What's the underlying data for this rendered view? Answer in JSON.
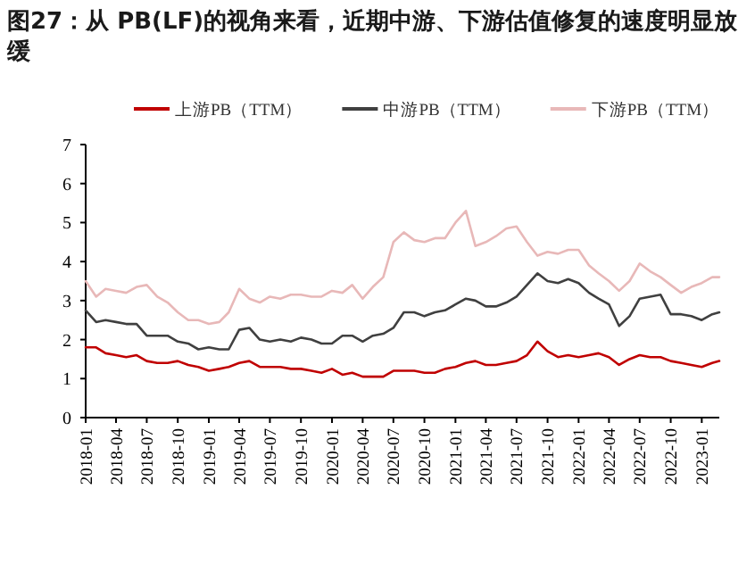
{
  "chart_data": {
    "type": "line",
    "title": "图27：从 PB(LF)的视角来看，近期中游、下游估值修复的速度明显放缓",
    "x": [
      "2018-01",
      "2018-02",
      "2018-03",
      "2018-04",
      "2018-05",
      "2018-06",
      "2018-07",
      "2018-08",
      "2018-09",
      "2018-10",
      "2018-11",
      "2018-12",
      "2019-01",
      "2019-02",
      "2019-03",
      "2019-04",
      "2019-05",
      "2019-06",
      "2019-07",
      "2019-08",
      "2019-09",
      "2019-10",
      "2019-11",
      "2019-12",
      "2020-01",
      "2020-02",
      "2020-03",
      "2020-04",
      "2020-05",
      "2020-06",
      "2020-07",
      "2020-08",
      "2020-09",
      "2020-10",
      "2020-11",
      "2020-12",
      "2021-01",
      "2021-02",
      "2021-03",
      "2021-04",
      "2021-05",
      "2021-06",
      "2021-07",
      "2021-08",
      "2021-09",
      "2021-10",
      "2021-11",
      "2021-12",
      "2022-01",
      "2022-02",
      "2022-03",
      "2022-04",
      "2022-05",
      "2022-06",
      "2022-07",
      "2022-08",
      "2022-09",
      "2022-10",
      "2022-11",
      "2022-12",
      "2023-01",
      "2023-02",
      "2023-02-22"
    ],
    "series": [
      {
        "name": "上游PB（TTM）",
        "color": "#c00000",
        "values": [
          1.8,
          1.8,
          1.65,
          1.6,
          1.55,
          1.6,
          1.45,
          1.4,
          1.4,
          1.45,
          1.35,
          1.3,
          1.2,
          1.25,
          1.3,
          1.4,
          1.45,
          1.3,
          1.3,
          1.3,
          1.25,
          1.25,
          1.2,
          1.15,
          1.25,
          1.1,
          1.15,
          1.05,
          1.05,
          1.05,
          1.2,
          1.2,
          1.2,
          1.15,
          1.15,
          1.25,
          1.3,
          1.4,
          1.45,
          1.35,
          1.35,
          1.4,
          1.45,
          1.6,
          1.95,
          1.7,
          1.55,
          1.6,
          1.55,
          1.6,
          1.65,
          1.55,
          1.35,
          1.5,
          1.6,
          1.55,
          1.55,
          1.45,
          1.4,
          1.35,
          1.3,
          1.4,
          1.45
        ]
      },
      {
        "name": "中游PB（TTM）",
        "color": "#404040",
        "values": [
          2.75,
          2.45,
          2.5,
          2.45,
          2.4,
          2.4,
          2.1,
          2.1,
          2.1,
          1.95,
          1.9,
          1.75,
          1.8,
          1.75,
          1.75,
          2.25,
          2.3,
          2.0,
          1.95,
          2.0,
          1.95,
          2.05,
          2.0,
          1.9,
          1.9,
          2.1,
          2.1,
          1.95,
          2.1,
          2.15,
          2.3,
          2.7,
          2.7,
          2.6,
          2.7,
          2.75,
          2.9,
          3.05,
          3.0,
          2.85,
          2.85,
          2.95,
          3.1,
          3.4,
          3.7,
          3.5,
          3.45,
          3.55,
          3.45,
          3.2,
          3.05,
          2.9,
          2.35,
          2.6,
          3.05,
          3.1,
          3.15,
          2.65,
          2.65,
          2.6,
          2.5,
          2.65,
          2.7
        ]
      },
      {
        "name": "下游PB（TTM）",
        "color": "#e8b8b8",
        "values": [
          3.5,
          3.1,
          3.3,
          3.25,
          3.2,
          3.35,
          3.4,
          3.1,
          2.95,
          2.7,
          2.5,
          2.5,
          2.4,
          2.45,
          2.7,
          3.3,
          3.05,
          2.95,
          3.1,
          3.05,
          3.15,
          3.15,
          3.1,
          3.1,
          3.25,
          3.2,
          3.4,
          3.05,
          3.35,
          3.6,
          4.5,
          4.75,
          4.55,
          4.5,
          4.6,
          4.6,
          5.0,
          5.3,
          4.4,
          4.5,
          4.65,
          4.85,
          4.9,
          4.5,
          4.15,
          4.25,
          4.2,
          4.3,
          4.3,
          3.9,
          3.7,
          3.5,
          3.25,
          3.5,
          3.95,
          3.75,
          3.6,
          3.4,
          3.2,
          3.35,
          3.45,
          3.6,
          3.6
        ]
      }
    ],
    "xlim": [
      "2018-01",
      "2023-02-22"
    ],
    "xticks": [
      "2018-01",
      "2018-04",
      "2018-07",
      "2018-10",
      "2019-01",
      "2019-04",
      "2019-07",
      "2019-10",
      "2020-01",
      "2020-04",
      "2020-07",
      "2020-10",
      "2021-01",
      "2021-04",
      "2021-07",
      "2021-10",
      "2022-01",
      "2022-04",
      "2022-07",
      "2022-10",
      "2023-01"
    ],
    "ylim": [
      0,
      7
    ],
    "yticks": [
      0,
      1,
      2,
      3,
      4,
      5,
      6,
      7
    ],
    "legend": "top",
    "line_style": "solid",
    "marker": "none"
  }
}
